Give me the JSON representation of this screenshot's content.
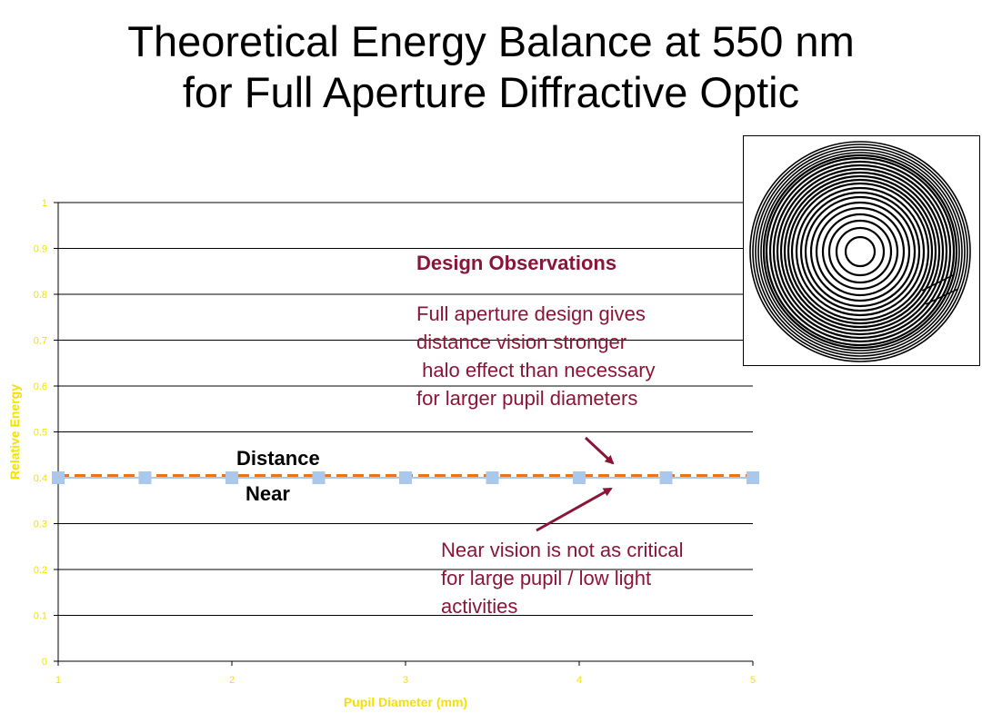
{
  "title_line1": "Theoretical Energy Balance at 550 nm",
  "title_line2": "for Full Aperture Diffractive Optic",
  "colors": {
    "distance": "#e8741c",
    "near": "#a9c8ec",
    "annotation": "#8a1538",
    "axis_label": "#f2e200",
    "grid": "#000000"
  },
  "chart_data": {
    "type": "line",
    "xlabel": "Pupil Diameter (mm)",
    "ylabel": "Relative Energy",
    "xlim": [
      1,
      5
    ],
    "ylim": [
      0,
      1
    ],
    "x_ticks": [
      "1",
      "2",
      "3",
      "4",
      "5"
    ],
    "y_ticks": [
      "0",
      "0.1",
      "0.2",
      "0.3",
      "0.4",
      "0.5",
      "0.6",
      "0.7",
      "0.8",
      "0.9",
      "1"
    ],
    "grid": true,
    "series": [
      {
        "name": "Distance",
        "x": [
          1,
          1.5,
          2,
          2.5,
          3,
          3.5,
          4,
          4.5,
          5
        ],
        "values": [
          0.405,
          0.405,
          0.405,
          0.405,
          0.405,
          0.405,
          0.405,
          0.405,
          0.405
        ]
      },
      {
        "name": "Near",
        "x": [
          1,
          1.5,
          2,
          2.5,
          3,
          3.5,
          4,
          4.5,
          5
        ],
        "values": [
          0.4,
          0.4,
          0.4,
          0.4,
          0.4,
          0.4,
          0.4,
          0.4,
          0.4
        ]
      }
    ],
    "annotations": {
      "design_title": "Design Observations",
      "design_lines": [
        "Full aperture design gives",
        "distance vision stronger",
        " halo effect than necessary",
        "for larger pupil diameters"
      ],
      "near_lines": [
        "Near vision is not as critical",
        "for large pupil / low light",
        "activities"
      ]
    }
  }
}
